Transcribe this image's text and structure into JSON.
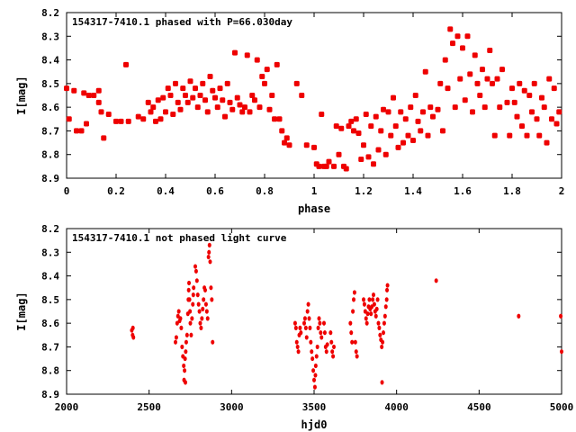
{
  "chart_data": [
    {
      "type": "scatter",
      "title": "154317-7410.1 phased with P=66.030day",
      "xlabel": "phase",
      "ylabel": "I[mag]",
      "xlim": [
        0,
        2
      ],
      "ylim": [
        8.2,
        8.9
      ],
      "y_inverted": true,
      "xticks": [
        "0",
        "0.2",
        "0.4",
        "0.6",
        "0.8",
        "1",
        "1.2",
        "1.4",
        "1.6",
        "1.8",
        "2"
      ],
      "yticks": [
        "8.2",
        "8.3",
        "8.4",
        "8.5",
        "8.6",
        "8.7",
        "8.8",
        "8.9"
      ],
      "grid": false,
      "marker_color": "#ee0000",
      "points": [
        [
          0.0,
          8.52
        ],
        [
          0.01,
          8.65
        ],
        [
          0.03,
          8.53
        ],
        [
          0.04,
          8.7
        ],
        [
          0.06,
          8.7
        ],
        [
          0.07,
          8.54
        ],
        [
          0.08,
          8.67
        ],
        [
          0.09,
          8.55
        ],
        [
          0.11,
          8.55
        ],
        [
          0.13,
          8.53
        ],
        [
          0.13,
          8.58
        ],
        [
          0.14,
          8.62
        ],
        [
          0.15,
          8.73
        ],
        [
          0.17,
          8.63
        ],
        [
          0.2,
          8.66
        ],
        [
          0.22,
          8.66
        ],
        [
          0.24,
          8.42
        ],
        [
          0.25,
          8.66
        ],
        [
          0.29,
          8.64
        ],
        [
          0.31,
          8.65
        ],
        [
          0.33,
          8.58
        ],
        [
          0.34,
          8.62
        ],
        [
          0.35,
          8.6
        ],
        [
          0.36,
          8.66
        ],
        [
          0.37,
          8.57
        ],
        [
          0.38,
          8.65
        ],
        [
          0.39,
          8.56
        ],
        [
          0.4,
          8.62
        ],
        [
          0.41,
          8.52
        ],
        [
          0.42,
          8.55
        ],
        [
          0.43,
          8.63
        ],
        [
          0.44,
          8.5
        ],
        [
          0.45,
          8.58
        ],
        [
          0.46,
          8.61
        ],
        [
          0.47,
          8.52
        ],
        [
          0.48,
          8.55
        ],
        [
          0.49,
          8.58
        ],
        [
          0.5,
          8.49
        ],
        [
          0.51,
          8.56
        ],
        [
          0.52,
          8.52
        ],
        [
          0.53,
          8.6
        ],
        [
          0.54,
          8.55
        ],
        [
          0.55,
          8.5
        ],
        [
          0.56,
          8.57
        ],
        [
          0.57,
          8.62
        ],
        [
          0.58,
          8.47
        ],
        [
          0.59,
          8.53
        ],
        [
          0.6,
          8.56
        ],
        [
          0.61,
          8.6
        ],
        [
          0.62,
          8.52
        ],
        [
          0.63,
          8.57
        ],
        [
          0.64,
          8.64
        ],
        [
          0.65,
          8.5
        ],
        [
          0.66,
          8.58
        ],
        [
          0.67,
          8.61
        ],
        [
          0.68,
          8.37
        ],
        [
          0.69,
          8.56
        ],
        [
          0.7,
          8.59
        ],
        [
          0.71,
          8.62
        ],
        [
          0.72,
          8.6
        ],
        [
          0.73,
          8.38
        ],
        [
          0.74,
          8.62
        ],
        [
          0.75,
          8.55
        ],
        [
          0.76,
          8.57
        ],
        [
          0.77,
          8.4
        ],
        [
          0.78,
          8.6
        ],
        [
          0.79,
          8.47
        ],
        [
          0.8,
          8.5
        ],
        [
          0.81,
          8.44
        ],
        [
          0.82,
          8.61
        ],
        [
          0.83,
          8.55
        ],
        [
          0.84,
          8.65
        ],
        [
          0.85,
          8.42
        ],
        [
          0.86,
          8.65
        ],
        [
          0.87,
          8.7
        ],
        [
          0.88,
          8.75
        ],
        [
          0.89,
          8.73
        ],
        [
          0.9,
          8.76
        ],
        [
          0.93,
          8.5
        ],
        [
          0.95,
          8.55
        ],
        [
          0.97,
          8.76
        ],
        [
          1.0,
          8.77
        ],
        [
          1.01,
          8.84
        ],
        [
          1.02,
          8.85
        ],
        [
          1.03,
          8.63
        ],
        [
          1.04,
          8.85
        ],
        [
          1.05,
          8.85
        ],
        [
          1.06,
          8.83
        ],
        [
          1.08,
          8.85
        ],
        [
          1.09,
          8.68
        ],
        [
          1.1,
          8.8
        ],
        [
          1.11,
          8.69
        ],
        [
          1.12,
          8.85
        ],
        [
          1.13,
          8.86
        ],
        [
          1.14,
          8.68
        ],
        [
          1.15,
          8.66
        ],
        [
          1.16,
          8.7
        ],
        [
          1.17,
          8.65
        ],
        [
          1.18,
          8.71
        ],
        [
          1.19,
          8.82
        ],
        [
          1.2,
          8.76
        ],
        [
          1.21,
          8.63
        ],
        [
          1.22,
          8.81
        ],
        [
          1.23,
          8.68
        ],
        [
          1.24,
          8.84
        ],
        [
          1.25,
          8.64
        ],
        [
          1.26,
          8.78
        ],
        [
          1.27,
          8.7
        ],
        [
          1.28,
          8.61
        ],
        [
          1.29,
          8.8
        ],
        [
          1.3,
          8.62
        ],
        [
          1.31,
          8.72
        ],
        [
          1.32,
          8.56
        ],
        [
          1.33,
          8.68
        ],
        [
          1.34,
          8.77
        ],
        [
          1.35,
          8.62
        ],
        [
          1.36,
          8.75
        ],
        [
          1.37,
          8.65
        ],
        [
          1.38,
          8.72
        ],
        [
          1.39,
          8.6
        ],
        [
          1.4,
          8.74
        ],
        [
          1.41,
          8.55
        ],
        [
          1.42,
          8.66
        ],
        [
          1.43,
          8.7
        ],
        [
          1.44,
          8.62
        ],
        [
          1.45,
          8.45
        ],
        [
          1.46,
          8.72
        ],
        [
          1.47,
          8.6
        ],
        [
          1.48,
          8.64
        ],
        [
          1.5,
          8.61
        ],
        [
          1.51,
          8.5
        ],
        [
          1.52,
          8.7
        ],
        [
          1.53,
          8.4
        ],
        [
          1.54,
          8.52
        ],
        [
          1.55,
          8.27
        ],
        [
          1.56,
          8.33
        ],
        [
          1.57,
          8.6
        ],
        [
          1.58,
          8.3
        ],
        [
          1.59,
          8.48
        ],
        [
          1.6,
          8.35
        ],
        [
          1.61,
          8.57
        ],
        [
          1.62,
          8.3
        ],
        [
          1.63,
          8.46
        ],
        [
          1.64,
          8.62
        ],
        [
          1.65,
          8.38
        ],
        [
          1.66,
          8.5
        ],
        [
          1.67,
          8.55
        ],
        [
          1.68,
          8.44
        ],
        [
          1.69,
          8.6
        ],
        [
          1.7,
          8.48
        ],
        [
          1.71,
          8.36
        ],
        [
          1.72,
          8.5
        ],
        [
          1.73,
          8.72
        ],
        [
          1.74,
          8.48
        ],
        [
          1.75,
          8.6
        ],
        [
          1.76,
          8.44
        ],
        [
          1.78,
          8.58
        ],
        [
          1.79,
          8.72
        ],
        [
          1.8,
          8.52
        ],
        [
          1.81,
          8.58
        ],
        [
          1.82,
          8.64
        ],
        [
          1.83,
          8.5
        ],
        [
          1.84,
          8.68
        ],
        [
          1.85,
          8.53
        ],
        [
          1.86,
          8.72
        ],
        [
          1.87,
          8.55
        ],
        [
          1.88,
          8.62
        ],
        [
          1.89,
          8.5
        ],
        [
          1.9,
          8.65
        ],
        [
          1.91,
          8.72
        ],
        [
          1.92,
          8.56
        ],
        [
          1.93,
          8.6
        ],
        [
          1.94,
          8.75
        ],
        [
          1.95,
          8.48
        ],
        [
          1.96,
          8.65
        ],
        [
          1.97,
          8.52
        ],
        [
          1.98,
          8.67
        ],
        [
          1.99,
          8.62
        ]
      ]
    },
    {
      "type": "scatter",
      "title": "154317-7410.1 not phased light curve",
      "xlabel": "hjd0",
      "ylabel": "I[mag]",
      "xlim": [
        2000,
        5000
      ],
      "ylim": [
        8.2,
        8.9
      ],
      "y_inverted": true,
      "xticks": [
        "2000",
        "2500",
        "3000",
        "3500",
        "4000",
        "4500",
        "5000"
      ],
      "yticks": [
        "8.2",
        "8.3",
        "8.4",
        "8.5",
        "8.6",
        "8.7",
        "8.8",
        "8.9"
      ],
      "grid": false,
      "marker_color": "#ee0000",
      "points": [
        [
          2395,
          8.63
        ],
        [
          2400,
          8.65
        ],
        [
          2402,
          8.62
        ],
        [
          2405,
          8.66
        ],
        [
          2660,
          8.68
        ],
        [
          2665,
          8.66
        ],
        [
          2670,
          8.6
        ],
        [
          2675,
          8.57
        ],
        [
          2680,
          8.55
        ],
        [
          2685,
          8.59
        ],
        [
          2690,
          8.58
        ],
        [
          2695,
          8.62
        ],
        [
          2700,
          8.7
        ],
        [
          2705,
          8.74
        ],
        [
          2710,
          8.78
        ],
        [
          2712,
          8.84
        ],
        [
          2715,
          8.8
        ],
        [
          2718,
          8.75
        ],
        [
          2720,
          8.85
        ],
        [
          2722,
          8.72
        ],
        [
          2725,
          8.68
        ],
        [
          2730,
          8.65
        ],
        [
          2735,
          8.56
        ],
        [
          2738,
          8.5
        ],
        [
          2740,
          8.46
        ],
        [
          2742,
          8.43
        ],
        [
          2745,
          8.5
        ],
        [
          2748,
          8.55
        ],
        [
          2750,
          8.6
        ],
        [
          2755,
          8.65
        ],
        [
          2760,
          8.58
        ],
        [
          2765,
          8.52
        ],
        [
          2768,
          8.48
        ],
        [
          2770,
          8.45
        ],
        [
          2780,
          8.36
        ],
        [
          2785,
          8.38
        ],
        [
          2790,
          8.42
        ],
        [
          2795,
          8.48
        ],
        [
          2800,
          8.52
        ],
        [
          2805,
          8.55
        ],
        [
          2810,
          8.6
        ],
        [
          2815,
          8.62
        ],
        [
          2820,
          8.58
        ],
        [
          2825,
          8.54
        ],
        [
          2830,
          8.5
        ],
        [
          2835,
          8.45
        ],
        [
          2840,
          8.46
        ],
        [
          2845,
          8.52
        ],
        [
          2850,
          8.55
        ],
        [
          2855,
          8.58
        ],
        [
          2860,
          8.32
        ],
        [
          2863,
          8.3
        ],
        [
          2866,
          8.27
        ],
        [
          2870,
          8.34
        ],
        [
          2875,
          8.45
        ],
        [
          2880,
          8.5
        ],
        [
          2885,
          8.68
        ],
        [
          3385,
          8.6
        ],
        [
          3390,
          8.62
        ],
        [
          3395,
          8.68
        ],
        [
          3400,
          8.7
        ],
        [
          3405,
          8.72
        ],
        [
          3410,
          8.65
        ],
        [
          3415,
          8.62
        ],
        [
          3420,
          8.64
        ],
        [
          3440,
          8.6
        ],
        [
          3445,
          8.58
        ],
        [
          3450,
          8.62
        ],
        [
          3455,
          8.66
        ],
        [
          3460,
          8.55
        ],
        [
          3465,
          8.52
        ],
        [
          3470,
          8.58
        ],
        [
          3475,
          8.62
        ],
        [
          3480,
          8.68
        ],
        [
          3485,
          8.72
        ],
        [
          3490,
          8.75
        ],
        [
          3495,
          8.8
        ],
        [
          3500,
          8.84
        ],
        [
          3505,
          8.87
        ],
        [
          3508,
          8.82
        ],
        [
          3510,
          8.78
        ],
        [
          3515,
          8.74
        ],
        [
          3520,
          8.7
        ],
        [
          3525,
          8.62
        ],
        [
          3530,
          8.58
        ],
        [
          3535,
          8.6
        ],
        [
          3540,
          8.64
        ],
        [
          3545,
          8.66
        ],
        [
          3560,
          8.6
        ],
        [
          3565,
          8.64
        ],
        [
          3570,
          8.7
        ],
        [
          3575,
          8.72
        ],
        [
          3580,
          8.69
        ],
        [
          3600,
          8.64
        ],
        [
          3605,
          8.68
        ],
        [
          3610,
          8.72
        ],
        [
          3615,
          8.74
        ],
        [
          3620,
          8.7
        ],
        [
          3720,
          8.6
        ],
        [
          3725,
          8.64
        ],
        [
          3730,
          8.68
        ],
        [
          3735,
          8.55
        ],
        [
          3740,
          8.5
        ],
        [
          3745,
          8.47
        ],
        [
          3750,
          8.68
        ],
        [
          3755,
          8.72
        ],
        [
          3760,
          8.74
        ],
        [
          3800,
          8.5
        ],
        [
          3805,
          8.52
        ],
        [
          3810,
          8.55
        ],
        [
          3815,
          8.58
        ],
        [
          3820,
          8.6
        ],
        [
          3825,
          8.56
        ],
        [
          3830,
          8.53
        ],
        [
          3835,
          8.5
        ],
        [
          3840,
          8.54
        ],
        [
          3845,
          8.56
        ],
        [
          3850,
          8.53
        ],
        [
          3855,
          8.5
        ],
        [
          3860,
          8.48
        ],
        [
          3865,
          8.52
        ],
        [
          3870,
          8.55
        ],
        [
          3875,
          8.57
        ],
        [
          3880,
          8.54
        ],
        [
          3885,
          8.5
        ],
        [
          3890,
          8.6
        ],
        [
          3895,
          8.62
        ],
        [
          3900,
          8.65
        ],
        [
          3905,
          8.67
        ],
        [
          3910,
          8.7
        ],
        [
          3912,
          8.85
        ],
        [
          3915,
          8.68
        ],
        [
          3920,
          8.64
        ],
        [
          3925,
          8.6
        ],
        [
          3930,
          8.57
        ],
        [
          3935,
          8.53
        ],
        [
          3940,
          8.5
        ],
        [
          3942,
          8.46
        ],
        [
          3945,
          8.44
        ],
        [
          4240,
          8.42
        ],
        [
          4740,
          8.57
        ],
        [
          4995,
          8.57
        ],
        [
          5000,
          8.72
        ]
      ]
    }
  ]
}
